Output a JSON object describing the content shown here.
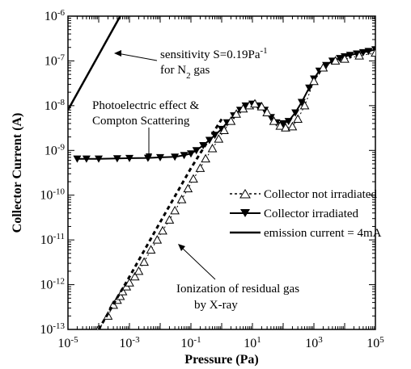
{
  "chart_data": {
    "type": "scatter",
    "xlabel": "Pressure (Pa)",
    "ylabel": "Collector Current (A)",
    "xscale": "log",
    "yscale": "log",
    "xlim": [
      1e-05,
      100000.0
    ],
    "ylim": [
      1e-13,
      1e-06
    ],
    "x_ticks": [
      {
        "base": "10",
        "exp": "-5"
      },
      {
        "base": "10",
        "exp": "-3"
      },
      {
        "base": "10",
        "exp": "-1"
      },
      {
        "base": "10",
        "exp": "1"
      },
      {
        "base": "10",
        "exp": "3"
      },
      {
        "base": "10",
        "exp": "5"
      }
    ],
    "y_ticks": [
      {
        "base": "10",
        "exp": "-6"
      },
      {
        "base": "10",
        "exp": "-7"
      },
      {
        "base": "10",
        "exp": "-8"
      },
      {
        "base": "10",
        "exp": "-9"
      },
      {
        "base": "10",
        "exp": "-10"
      },
      {
        "base": "10",
        "exp": "-11"
      },
      {
        "base": "10",
        "exp": "-12"
      },
      {
        "base": "10",
        "exp": "-13"
      }
    ],
    "grid": false,
    "legend_position": "center-right",
    "legend": [
      {
        "label": "Collector not irradiated",
        "style": "dotted-open-triangle"
      },
      {
        "label": "Collector irradiated",
        "style": "line-filled-down-triangle"
      },
      {
        "label": "emission current = 4mA",
        "style": "solid-line"
      }
    ],
    "annotations": {
      "sensitivity": {
        "line1_prefix": "sensitivity S=0.19Pa",
        "line1_sup": "-1",
        "line2_prefix": "for N",
        "line2_sub": "2",
        "line2_suffix": " gas"
      },
      "photo": {
        "line1": "Photoelectric effect &",
        "line2": "Compton Scattering"
      },
      "ionization": {
        "line1": "Ionization of residual gas",
        "line2": "by X-ray"
      }
    },
    "series": [
      {
        "name": "sensitivity S=0.19Pa-1 for N2 gas",
        "style": "solid",
        "x": [
          1e-05,
          0.0005
        ],
        "y": [
          8e-09,
          1e-06
        ]
      },
      {
        "name": "Collector irradiated",
        "style": "line-filled-down-triangle",
        "x": [
          2e-05,
          4e-05,
          0.0001,
          0.0004,
          0.001,
          0.004,
          0.01,
          0.03,
          0.06,
          0.1,
          0.15,
          0.25,
          0.4,
          0.6,
          1,
          1.5,
          2.5,
          4,
          6,
          10,
          15,
          25,
          40,
          60,
          100,
          150,
          250,
          400,
          700,
          1000,
          1500,
          2500,
          4000,
          7000,
          10000,
          15000,
          25000,
          40000,
          60000,
          100000
        ],
        "y": [
          6.5e-10,
          6.5e-10,
          6.5e-10,
          6.6e-10,
          6.7e-10,
          6.8e-10,
          7e-10,
          7.2e-10,
          7.8e-10,
          8.5e-10,
          1e-09,
          1.3e-09,
          1.7e-09,
          2.2e-09,
          3e-09,
          4.2e-09,
          6e-09,
          8e-09,
          1e-08,
          1.1e-08,
          1e-08,
          8e-09,
          5.5e-09,
          4.2e-09,
          4e-09,
          4.5e-09,
          7e-09,
          1.2e-08,
          2.5e-08,
          4e-08,
          6e-08,
          8e-08,
          1e-07,
          1.15e-07,
          1.25e-07,
          1.35e-07,
          1.45e-07,
          1.55e-07,
          1.65e-07,
          1.8e-07
        ]
      },
      {
        "name": "Collector not irradiated",
        "style": "dotted-open-triangle",
        "x": [
          0.0001,
          0.0002,
          0.0003,
          0.0004,
          0.0005,
          0.0006,
          0.0008,
          0.001,
          0.0015,
          0.002,
          0.003,
          0.005,
          0.008,
          0.012,
          0.02,
          0.03,
          0.05,
          0.08,
          0.12,
          0.2,
          0.3,
          0.5,
          0.8,
          1.2,
          2,
          3,
          5,
          8,
          12,
          20,
          30,
          50,
          80,
          120,
          200,
          300,
          500,
          1000,
          2000,
          5000,
          10000,
          30000,
          100000
        ],
        "y": [
          1e-13,
          2e-13,
          3.5e-13,
          4.5e-13,
          5.5e-13,
          7e-13,
          9e-13,
          1.1e-12,
          1.5e-12,
          2e-12,
          3.2e-12,
          6e-12,
          1e-11,
          1.6e-11,
          2.8e-11,
          4.5e-11,
          8e-11,
          1.4e-10,
          2.3e-10,
          4e-10,
          6.5e-10,
          1.1e-09,
          1.8e-09,
          2.8e-09,
          4.5e-09,
          6.5e-09,
          8.5e-09,
          1e-08,
          1.1e-08,
          9.5e-09,
          7e-09,
          4.5e-09,
          3.5e-09,
          3.2e-09,
          3.4e-09,
          5e-09,
          1e-08,
          3.5e-08,
          7e-08,
          1e-07,
          1.1e-07,
          1.3e-07,
          1.5e-07
        ]
      },
      {
        "name": "emission current = 4mA",
        "style": "dashed",
        "x": [
          0.0001,
          0.001,
          0.01,
          0.1,
          1
        ],
        "y": [
          1e-13,
          1.5e-12,
          2.5e-11,
          4e-10,
          5e-09
        ]
      }
    ]
  }
}
